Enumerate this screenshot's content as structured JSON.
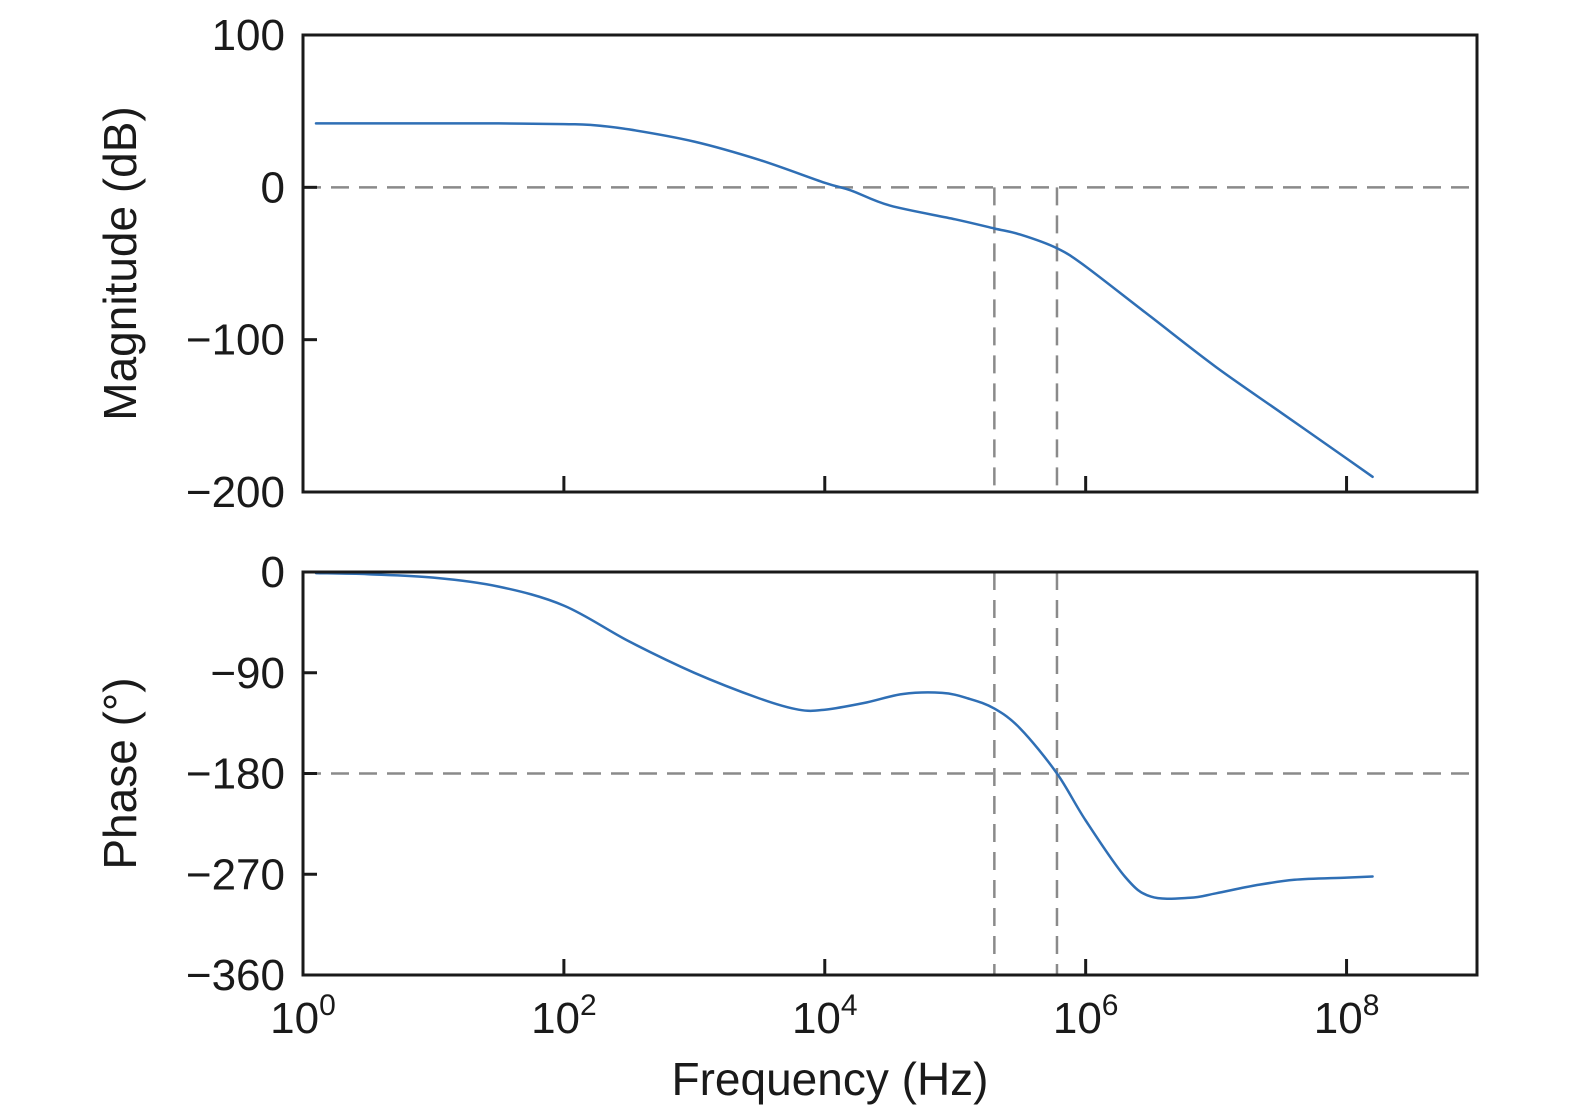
{
  "chart_data": [
    {
      "type": "line",
      "ylabel": "Magnitude (dB)",
      "xlabel": "",
      "x_scale": "log",
      "xlim_exponent": [
        0,
        9
      ],
      "x_ticks_exponent": [
        0,
        2,
        4,
        6,
        8
      ],
      "ylim": [
        -200,
        100
      ],
      "y_ticks": [
        {
          "value": 100,
          "label": "100"
        },
        {
          "value": 0,
          "label": "0"
        },
        {
          "value": -100,
          "label": "−100"
        },
        {
          "value": -200,
          "label": "−200"
        }
      ],
      "grid": false,
      "reference_lines": {
        "horizontal": [
          0
        ],
        "vertical_exponent": [
          5.3,
          5.78
        ]
      },
      "series": [
        {
          "color": "#2f6fb5",
          "x_exponent": [
            0.1,
            0.5,
            1.0,
            1.5,
            2.0,
            2.2,
            2.5,
            3.0,
            3.5,
            4.0,
            4.2,
            4.5,
            5.0,
            5.3,
            5.5,
            5.78,
            6.0,
            6.5,
            7.0,
            7.5,
            8.0,
            8.2
          ],
          "y": [
            42,
            42,
            42,
            42,
            41.5,
            41,
            38,
            30,
            18,
            3,
            -2,
            -12,
            -21,
            -27,
            -31,
            -40,
            -52,
            -85,
            -118,
            -148,
            -178,
            -190
          ]
        }
      ]
    },
    {
      "type": "line",
      "ylabel": "Phase (°)",
      "xlabel": "Frequency (Hz)",
      "x_scale": "log",
      "xlim_exponent": [
        0,
        9
      ],
      "x_ticks_exponent": [
        0,
        2,
        4,
        6,
        8
      ],
      "x_tick_labels": [
        {
          "base": "10",
          "exp": "0"
        },
        {
          "base": "10",
          "exp": "2"
        },
        {
          "base": "10",
          "exp": "4"
        },
        {
          "base": "10",
          "exp": "6"
        },
        {
          "base": "10",
          "exp": "8"
        }
      ],
      "ylim": [
        -360,
        0
      ],
      "y_ticks": [
        {
          "value": 0,
          "label": "0"
        },
        {
          "value": -90,
          "label": "−90"
        },
        {
          "value": -180,
          "label": "−180"
        },
        {
          "value": -270,
          "label": "−270"
        },
        {
          "value": -360,
          "label": "−360"
        }
      ],
      "grid": false,
      "reference_lines": {
        "horizontal": [
          -180
        ],
        "vertical_exponent": [
          5.3,
          5.78
        ]
      },
      "series": [
        {
          "color": "#2f6fb5",
          "x_exponent": [
            0.1,
            0.5,
            1.0,
            1.5,
            2.0,
            2.5,
            3.0,
            3.5,
            3.8,
            4.0,
            4.3,
            4.6,
            4.9,
            5.1,
            5.3,
            5.5,
            5.78,
            6.0,
            6.3,
            6.5,
            6.8,
            7.0,
            7.3,
            7.6,
            8.0,
            8.2
          ],
          "y": [
            -1,
            -2,
            -5,
            -13,
            -30,
            -62,
            -90,
            -113,
            -123,
            -123,
            -117,
            -109,
            -108,
            -113,
            -122,
            -140,
            -180,
            -222,
            -272,
            -290,
            -291,
            -287,
            -280,
            -275,
            -273,
            -272
          ]
        }
      ]
    }
  ]
}
